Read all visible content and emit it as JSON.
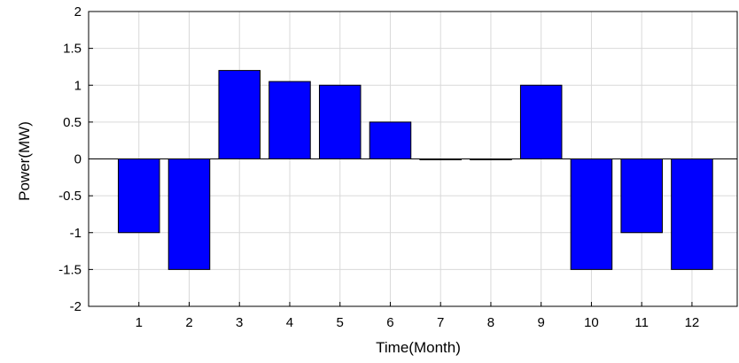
{
  "chart_data": {
    "type": "bar",
    "title": "",
    "xlabel": "Time(Month)",
    "ylabel": "Power(MW)",
    "categories": [
      "1",
      "2",
      "3",
      "4",
      "5",
      "6",
      "7",
      "8",
      "9",
      "10",
      "11",
      "12"
    ],
    "values": [
      -1,
      -1.5,
      1.2,
      1.05,
      1,
      0.5,
      0,
      0,
      1,
      -1.5,
      -1,
      -1.5
    ],
    "ylim": [
      -2,
      2
    ],
    "yticks": [
      -2,
      -1.5,
      -1,
      -0.5,
      0,
      0.5,
      1,
      1.5,
      2
    ],
    "xlim": [
      0,
      12.9
    ],
    "grid": true,
    "bar_color": "#0000ff",
    "bar_edge_color": "#000000",
    "grid_color": "#d9d9d9"
  }
}
